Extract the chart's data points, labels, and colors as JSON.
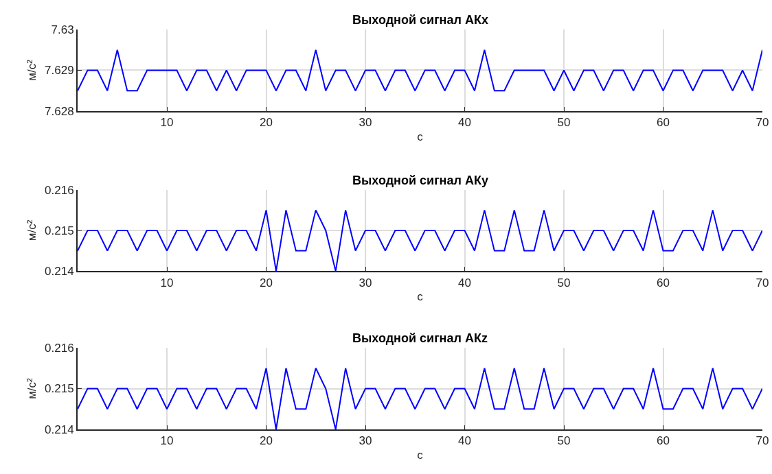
{
  "chart_data": [
    {
      "type": "line",
      "title": "Выходной сигнал АКх",
      "xlabel": "с",
      "ylabel": "м/с²",
      "x": [
        1,
        2,
        3,
        4,
        5,
        6,
        7,
        8,
        9,
        10,
        11,
        12,
        13,
        14,
        15,
        16,
        17,
        18,
        19,
        20,
        21,
        22,
        23,
        24,
        25,
        26,
        27,
        28,
        29,
        30,
        31,
        32,
        33,
        34,
        35,
        36,
        37,
        38,
        39,
        40,
        41,
        42,
        43,
        44,
        45,
        46,
        47,
        48,
        49,
        50,
        51,
        52,
        53,
        54,
        55,
        56,
        57,
        58,
        59,
        60,
        61,
        62,
        63,
        64,
        65,
        66,
        67,
        68,
        69,
        70
      ],
      "series": [
        {
          "color": "#0000ff",
          "values": [
            7.6285,
            7.629,
            7.629,
            7.6285,
            7.6295,
            7.6285,
            7.6285,
            7.629,
            7.629,
            7.629,
            7.629,
            7.6285,
            7.629,
            7.629,
            7.6285,
            7.629,
            7.6285,
            7.629,
            7.629,
            7.629,
            7.6285,
            7.629,
            7.629,
            7.6285,
            7.6295,
            7.6285,
            7.629,
            7.629,
            7.6285,
            7.629,
            7.629,
            7.6285,
            7.629,
            7.629,
            7.6285,
            7.629,
            7.629,
            7.6285,
            7.629,
            7.629,
            7.6285,
            7.6295,
            7.6285,
            7.6285,
            7.629,
            7.629,
            7.629,
            7.629,
            7.6285,
            7.629,
            7.6285,
            7.629,
            7.629,
            7.6285,
            7.629,
            7.629,
            7.6285,
            7.629,
            7.629,
            7.6285,
            7.629,
            7.629,
            7.6285,
            7.629,
            7.629,
            7.629,
            7.6285,
            7.629,
            7.6285,
            7.6295
          ]
        }
      ],
      "xlim": [
        1,
        70
      ],
      "xticks": [
        10,
        20,
        30,
        40,
        50,
        60,
        70
      ],
      "ylim": [
        7.628,
        7.63
      ],
      "yticks": [
        7.628,
        7.629,
        7.63
      ],
      "grid": true,
      "marker": "none",
      "line_style": "solid"
    },
    {
      "type": "line",
      "title": "Выходной сигнал АКy",
      "xlabel": "с",
      "ylabel": "м/с²",
      "x": [
        1,
        2,
        3,
        4,
        5,
        6,
        7,
        8,
        9,
        10,
        11,
        12,
        13,
        14,
        15,
        16,
        17,
        18,
        19,
        20,
        21,
        22,
        23,
        24,
        25,
        26,
        27,
        28,
        29,
        30,
        31,
        32,
        33,
        34,
        35,
        36,
        37,
        38,
        39,
        40,
        41,
        42,
        43,
        44,
        45,
        46,
        47,
        48,
        49,
        50,
        51,
        52,
        53,
        54,
        55,
        56,
        57,
        58,
        59,
        60,
        61,
        62,
        63,
        64,
        65,
        66,
        67,
        68,
        69,
        70
      ],
      "series": [
        {
          "color": "#0000ff",
          "values": [
            0.2145,
            0.215,
            0.215,
            0.2145,
            0.215,
            0.215,
            0.2145,
            0.215,
            0.215,
            0.2145,
            0.215,
            0.215,
            0.2145,
            0.215,
            0.215,
            0.2145,
            0.215,
            0.215,
            0.2145,
            0.2155,
            0.214,
            0.2155,
            0.2145,
            0.2145,
            0.2155,
            0.215,
            0.214,
            0.2155,
            0.2145,
            0.215,
            0.215,
            0.2145,
            0.215,
            0.215,
            0.2145,
            0.215,
            0.215,
            0.2145,
            0.215,
            0.215,
            0.2145,
            0.2155,
            0.2145,
            0.2145,
            0.2155,
            0.2145,
            0.2145,
            0.2155,
            0.2145,
            0.215,
            0.215,
            0.2145,
            0.215,
            0.215,
            0.2145,
            0.215,
            0.215,
            0.2145,
            0.2155,
            0.2145,
            0.2145,
            0.215,
            0.215,
            0.2145,
            0.2155,
            0.2145,
            0.215,
            0.215,
            0.2145,
            0.215
          ]
        }
      ],
      "xlim": [
        1,
        70
      ],
      "xticks": [
        10,
        20,
        30,
        40,
        50,
        60,
        70
      ],
      "ylim": [
        0.214,
        0.216
      ],
      "yticks": [
        0.214,
        0.215,
        0.216
      ],
      "grid": true,
      "marker": "none",
      "line_style": "solid"
    },
    {
      "type": "line",
      "title": "Выходной сигнал АКz",
      "xlabel": "с",
      "ylabel": "м/с²",
      "x": [
        1,
        2,
        3,
        4,
        5,
        6,
        7,
        8,
        9,
        10,
        11,
        12,
        13,
        14,
        15,
        16,
        17,
        18,
        19,
        20,
        21,
        22,
        23,
        24,
        25,
        26,
        27,
        28,
        29,
        30,
        31,
        32,
        33,
        34,
        35,
        36,
        37,
        38,
        39,
        40,
        41,
        42,
        43,
        44,
        45,
        46,
        47,
        48,
        49,
        50,
        51,
        52,
        53,
        54,
        55,
        56,
        57,
        58,
        59,
        60,
        61,
        62,
        63,
        64,
        65,
        66,
        67,
        68,
        69,
        70
      ],
      "series": [
        {
          "color": "#0000ff",
          "values": [
            0.2145,
            0.215,
            0.215,
            0.2145,
            0.215,
            0.215,
            0.2145,
            0.215,
            0.215,
            0.2145,
            0.215,
            0.215,
            0.2145,
            0.215,
            0.215,
            0.2145,
            0.215,
            0.215,
            0.2145,
            0.2155,
            0.214,
            0.2155,
            0.2145,
            0.2145,
            0.2155,
            0.215,
            0.214,
            0.2155,
            0.2145,
            0.215,
            0.215,
            0.2145,
            0.215,
            0.215,
            0.2145,
            0.215,
            0.215,
            0.2145,
            0.215,
            0.215,
            0.2145,
            0.2155,
            0.2145,
            0.2145,
            0.2155,
            0.2145,
            0.2145,
            0.2155,
            0.2145,
            0.215,
            0.215,
            0.2145,
            0.215,
            0.215,
            0.2145,
            0.215,
            0.215,
            0.2145,
            0.2155,
            0.2145,
            0.2145,
            0.215,
            0.215,
            0.2145,
            0.2155,
            0.2145,
            0.215,
            0.215,
            0.2145,
            0.215
          ]
        }
      ],
      "xlim": [
        1,
        70
      ],
      "xticks": [
        10,
        20,
        30,
        40,
        50,
        60,
        70
      ],
      "ylim": [
        0.214,
        0.216
      ],
      "yticks": [
        0.214,
        0.215,
        0.216
      ],
      "grid": true,
      "marker": "none",
      "line_style": "solid"
    }
  ]
}
